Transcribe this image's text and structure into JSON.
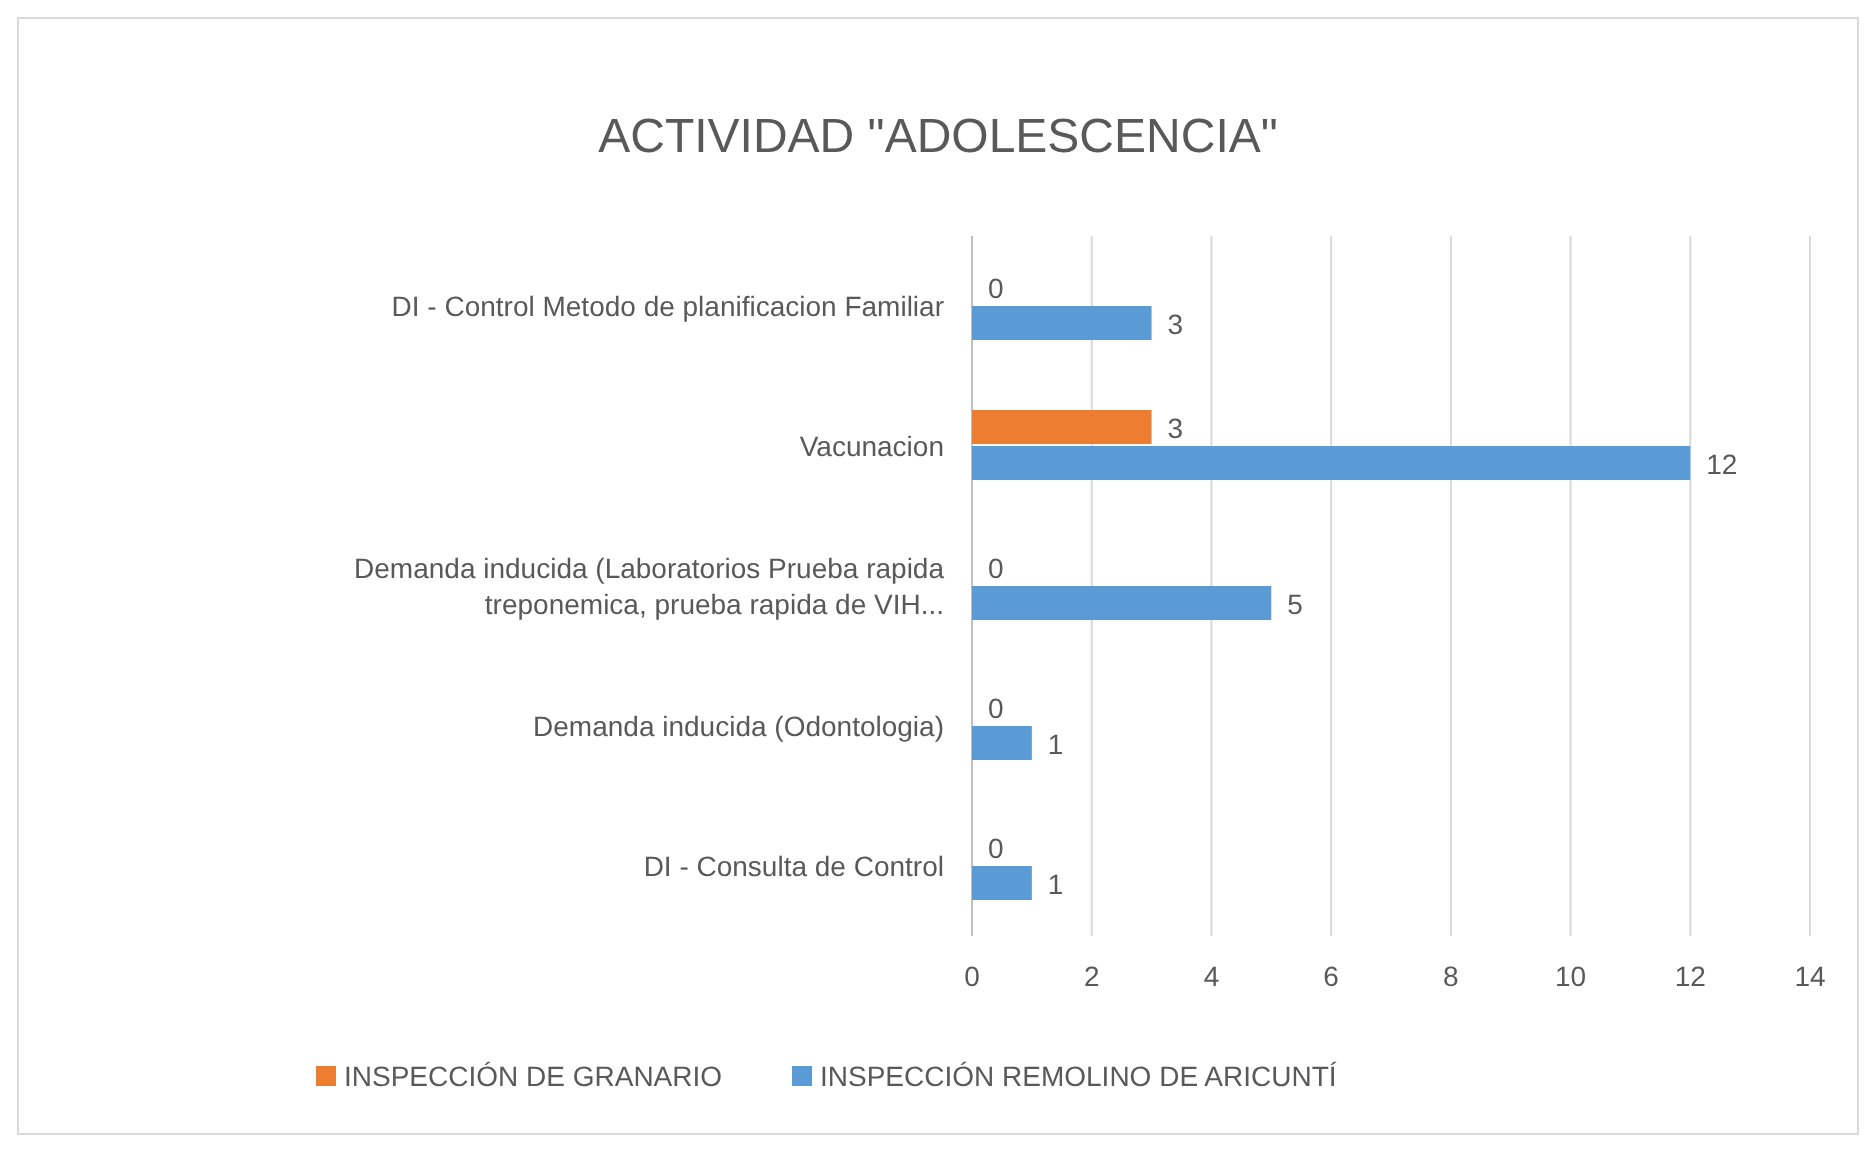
{
  "chart_data": {
    "type": "bar",
    "title": "ACTIVIDAD \"ADOLESCENCIA\"",
    "orientation": "horizontal",
    "categories": [
      "DI - Control Metodo de planificacion Familiar",
      "Vacunacion",
      "Demanda inducida (Laboratorios Prueba rapida treponemica, prueba rapida de VIH...",
      "Demanda inducida (Odontologia)",
      "DI - Consulta de Control"
    ],
    "series": [
      {
        "name": "INSPECCIÓN DE GRANARIO",
        "color": "#ed7d31",
        "values": [
          0,
          3,
          0,
          0,
          0
        ]
      },
      {
        "name": "INSPECCIÓN REMOLINO DE ARICUNTÍ",
        "color": "#5b9bd5",
        "values": [
          3,
          12,
          5,
          1,
          1
        ]
      }
    ],
    "xlim": [
      0,
      14
    ],
    "xticks": [
      0,
      2,
      4,
      6,
      8,
      10,
      12,
      14
    ],
    "grid": "x",
    "legend": "bottom",
    "data_labels": true
  }
}
